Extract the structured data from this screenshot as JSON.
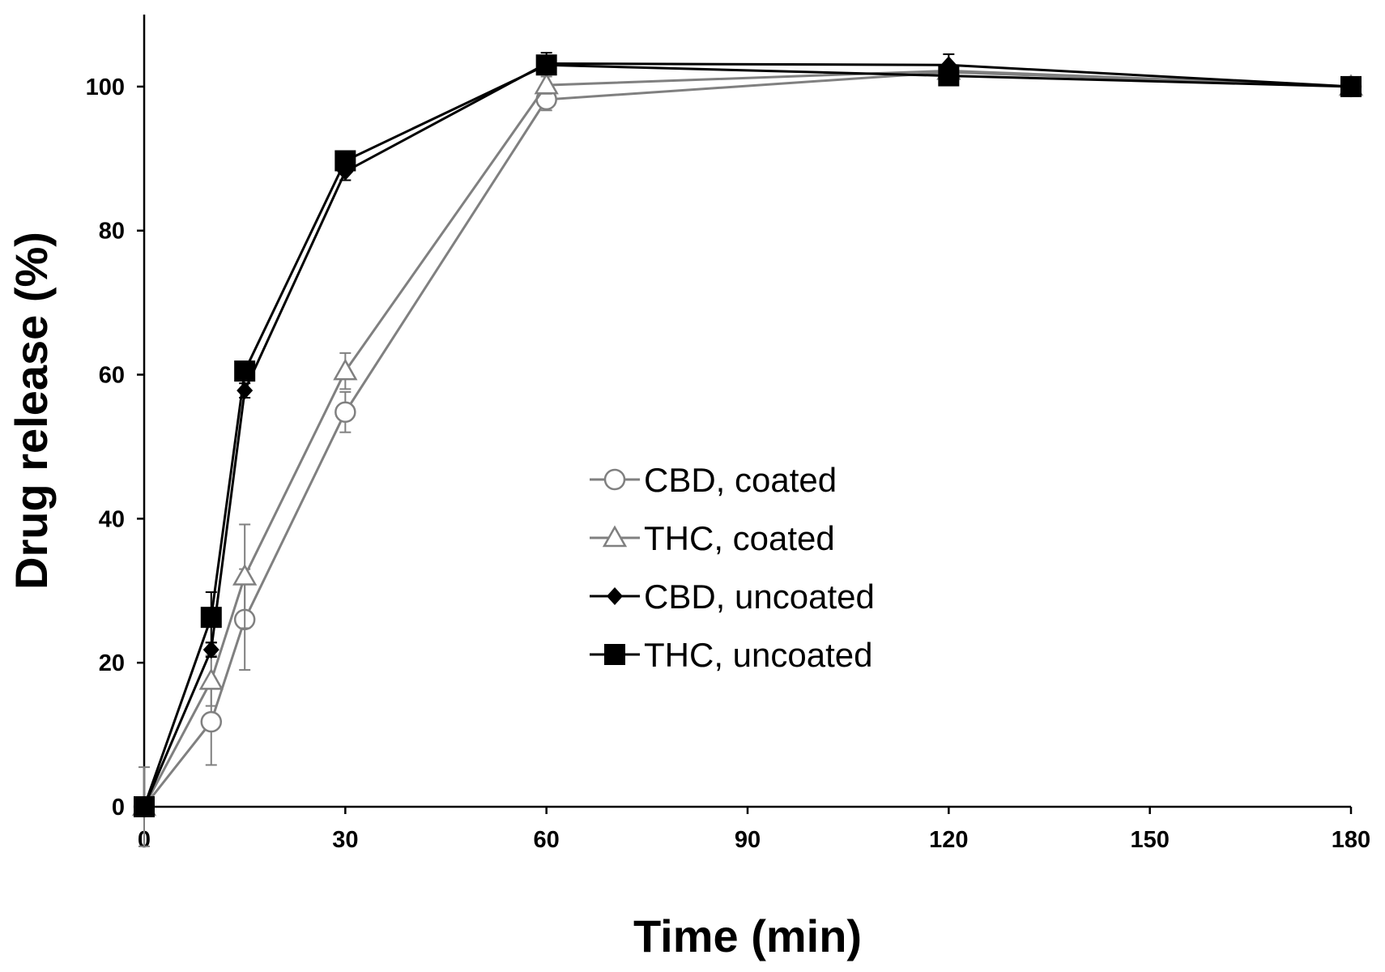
{
  "chart_data": {
    "type": "line",
    "title": "",
    "xlabel": "Time (min)",
    "ylabel": "Drug release (%)",
    "xlim": [
      0,
      180
    ],
    "ylim": [
      0,
      110
    ],
    "xticks": [
      0,
      30,
      60,
      90,
      120,
      150,
      180
    ],
    "yticks": [
      0,
      20,
      40,
      60,
      80,
      100
    ],
    "grid": false,
    "legend_position": "center-right",
    "x": [
      0,
      10,
      15,
      30,
      60,
      120,
      180
    ],
    "series": [
      {
        "name": "CBD, coated",
        "values": [
          0,
          11.8,
          26.0,
          54.8,
          98.2,
          102.0,
          100.0
        ],
        "error": [
          5.5,
          6.0,
          7.0,
          2.8,
          1.5,
          1.2,
          0.5
        ],
        "color": "#808080",
        "marker": "circle-open"
      },
      {
        "name": "THC, coated",
        "values": [
          0,
          17.5,
          32.0,
          60.5,
          100.2,
          102.2,
          100.0
        ],
        "error": [
          0.5,
          3.5,
          7.2,
          2.5,
          1.2,
          1.0,
          0.5
        ],
        "color": "#808080",
        "marker": "triangle-open"
      },
      {
        "name": "CBD, uncoated",
        "values": [
          0,
          21.8,
          57.8,
          88.2,
          103.2,
          103.0,
          100.0
        ],
        "error": [
          0.5,
          1.0,
          1.0,
          1.2,
          1.5,
          1.5,
          0.5
        ],
        "color": "#000000",
        "marker": "diamond-filled"
      },
      {
        "name": "THC, uncoated",
        "values": [
          0,
          26.3,
          60.5,
          89.7,
          103.0,
          101.5,
          100.0
        ],
        "error": [
          0.5,
          3.5,
          1.0,
          1.0,
          1.2,
          1.2,
          0.5
        ],
        "color": "#000000",
        "marker": "square-filled"
      }
    ]
  }
}
